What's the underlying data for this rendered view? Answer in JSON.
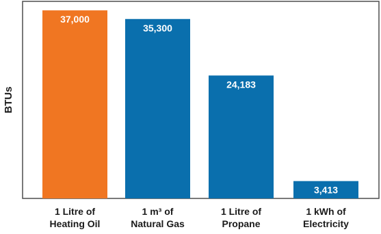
{
  "chart_data": {
    "type": "bar",
    "title": "",
    "xlabel": "",
    "ylabel": "BTUs",
    "ylim": [
      0,
      38500
    ],
    "grid": false,
    "categories": [
      [
        "1 Litre of",
        "Heating Oil"
      ],
      [
        "1 m³ of",
        "Natural Gas"
      ],
      [
        "1 Litre of",
        "Propane"
      ],
      [
        "1 kWh of",
        "Electricity"
      ]
    ],
    "values": [
      37000,
      35300,
      24183,
      3413
    ],
    "value_labels": [
      "37,000",
      "35,300",
      "24,183",
      "3,413"
    ],
    "bar_colors": [
      "#f07622",
      "#0a6fad",
      "#0a6fad",
      "#0a6fad"
    ],
    "frame_color": "#4d4d4d"
  }
}
